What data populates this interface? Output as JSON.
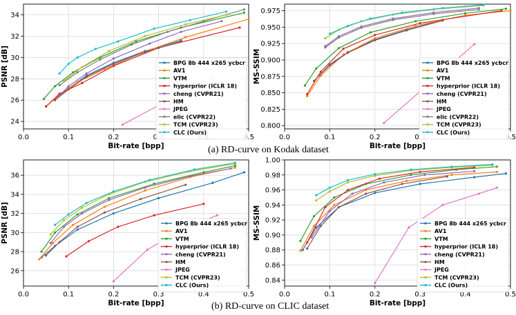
{
  "captions": {
    "a": "(a) RD-curve on Kodak dataset",
    "b": "(b) RD-curve on CLIC dataset"
  },
  "colors": {
    "BPG 8b 444 x265 ycbcr": "#1f77b4",
    "AV1": "#ff7f0e",
    "VTM": "#2ca02c",
    "hyperprior (ICLR 18)": "#d62728",
    "cheng (CVPR21)": "#9467bd",
    "HM": "#8c564b",
    "JPEG": "#e377c2",
    "elic (CVPR22)": "#7f7f7f",
    "TCM (CVPR23)": "#bcbd22",
    "CLC (Ours)": "#17becf"
  },
  "chart_data": [
    {
      "id": "kodak-psnr",
      "type": "line",
      "title": "",
      "xlabel": "Bit-rate [bpp]",
      "ylabel": "PSNR [dB]",
      "xlim": [
        0.0,
        0.5
      ],
      "ylim": [
        23.3,
        35.0
      ],
      "xticks": [
        "0.0",
        "0.1",
        "0.2",
        "0.3",
        "0.4",
        "0.5"
      ],
      "yticks": [
        "24",
        "26",
        "28",
        "30",
        "32",
        "34"
      ],
      "legend": "bottom-right",
      "series": [
        {
          "name": "BPG 8b 444 x265 ycbcr",
          "x": [
            0.07,
            0.1,
            0.14,
            0.2,
            0.27,
            0.35
          ],
          "y": [
            26.1,
            27.1,
            28.3,
            29.5,
            30.6,
            31.6
          ]
        },
        {
          "name": "AV1",
          "x": [
            0.05,
            0.08,
            0.12,
            0.18,
            0.26,
            0.36,
            0.5
          ],
          "y": [
            25.4,
            26.5,
            27.7,
            28.9,
            30.4,
            31.9,
            33.6
          ]
        },
        {
          "name": "VTM",
          "x": [
            0.045,
            0.07,
            0.11,
            0.17,
            0.25,
            0.35,
            0.49
          ],
          "y": [
            26.1,
            27.3,
            28.6,
            30.0,
            31.5,
            32.8,
            34.2
          ]
        },
        {
          "name": "hyperprior (ICLR 18)",
          "x": [
            0.05,
            0.08,
            0.13,
            0.2,
            0.3,
            0.48
          ],
          "y": [
            25.4,
            26.6,
            27.6,
            29.2,
            30.9,
            32.8
          ]
        },
        {
          "name": "cheng (CVPR21)",
          "x": [
            0.07,
            0.1,
            0.14,
            0.2,
            0.28,
            0.35,
            0.44
          ],
          "y": [
            26.0,
            27.3,
            28.5,
            29.9,
            31.3,
            32.4,
            33.4
          ]
        },
        {
          "name": "HM",
          "x": [
            0.07,
            0.1,
            0.14,
            0.2,
            0.27,
            0.35
          ],
          "y": [
            26.0,
            27.0,
            28.2,
            29.4,
            30.5,
            31.5
          ]
        },
        {
          "name": "JPEG",
          "x": [
            0.22,
            0.42
          ],
          "y": [
            23.7,
            28.2
          ]
        },
        {
          "name": "elic (CVPR22)",
          "x": [
            0.08,
            0.12,
            0.17,
            0.24,
            0.32,
            0.4,
            0.49
          ],
          "y": [
            27.4,
            28.6,
            29.8,
            31.2,
            32.4,
            33.4,
            34.5
          ]
        },
        {
          "name": "TCM (CVPR23)",
          "x": [
            0.09,
            0.13,
            0.19,
            0.27,
            0.36,
            0.45
          ],
          "y": [
            27.8,
            29.1,
            30.6,
            32.0,
            33.1,
            34.0
          ]
        },
        {
          "name": "CLC (Ours)",
          "x": [
            0.08,
            0.1,
            0.12,
            0.16,
            0.21,
            0.29,
            0.37,
            0.45
          ],
          "y": [
            28.5,
            29.4,
            30.0,
            30.8,
            31.5,
            32.7,
            33.5,
            34.3
          ]
        }
      ]
    },
    {
      "id": "kodak-msssim",
      "type": "line",
      "title": "",
      "xlabel": "Bit-rate [bpp]",
      "ylabel": "MS-SSIM",
      "xlim": [
        0.0,
        0.5
      ],
      "ylim": [
        0.795,
        0.985
      ],
      "xticks": [
        "0.0",
        "0.1",
        "0.2",
        "0.3",
        "0.4",
        "0.5"
      ],
      "yticks": [
        "0.800",
        "0.825",
        "0.850",
        "0.875",
        "0.900",
        "0.925",
        "0.950",
        "0.975"
      ],
      "legend": "bottom-right",
      "series": [
        {
          "name": "BPG 8b 444 x265 ycbcr",
          "x": [
            0.065,
            0.1,
            0.14,
            0.2,
            0.27,
            0.35
          ],
          "y": [
            0.868,
            0.893,
            0.912,
            0.931,
            0.946,
            0.961
          ]
        },
        {
          "name": "AV1",
          "x": [
            0.05,
            0.08,
            0.13,
            0.2,
            0.29,
            0.4,
            0.5
          ],
          "y": [
            0.845,
            0.876,
            0.908,
            0.933,
            0.952,
            0.968,
            0.975
          ]
        },
        {
          "name": "VTM",
          "x": [
            0.045,
            0.07,
            0.12,
            0.19,
            0.29,
            0.4,
            0.49
          ],
          "y": [
            0.861,
            0.887,
            0.918,
            0.942,
            0.959,
            0.971,
            0.978
          ]
        },
        {
          "name": "hyperprior (ICLR 18)",
          "x": [
            0.05,
            0.08,
            0.13,
            0.2,
            0.3,
            0.48
          ],
          "y": [
            0.848,
            0.882,
            0.917,
            0.938,
            0.956,
            0.975
          ]
        },
        {
          "name": "cheng (CVPR21)",
          "x": [
            0.09,
            0.12,
            0.17,
            0.24,
            0.33,
            0.43
          ],
          "y": [
            0.921,
            0.936,
            0.951,
            0.963,
            0.972,
            0.979
          ]
        },
        {
          "name": "HM",
          "x": [
            0.065,
            0.1,
            0.14,
            0.2,
            0.27,
            0.35
          ],
          "y": [
            0.868,
            0.892,
            0.911,
            0.93,
            0.945,
            0.96
          ]
        },
        {
          "name": "JPEG",
          "x": [
            0.22,
            0.42
          ],
          "y": [
            0.804,
            0.924
          ]
        },
        {
          "name": "elic (CVPR22)",
          "x": [
            0.09,
            0.12,
            0.17,
            0.24,
            0.33,
            0.43
          ],
          "y": [
            0.919,
            0.934,
            0.949,
            0.961,
            0.97,
            0.977
          ]
        },
        {
          "name": "TCM (CVPR23)",
          "x": [
            0.09,
            0.12,
            0.17,
            0.24,
            0.33,
            0.44
          ],
          "y": [
            0.933,
            0.946,
            0.959,
            0.969,
            0.977,
            0.983
          ]
        },
        {
          "name": "CLC (Ours)",
          "x": [
            0.1,
            0.14,
            0.19,
            0.26,
            0.35,
            0.44
          ],
          "y": [
            0.94,
            0.952,
            0.963,
            0.972,
            0.979,
            0.984
          ]
        }
      ]
    },
    {
      "id": "clic-psnr",
      "type": "line",
      "title": "",
      "xlabel": "Bit-rate [bpp]",
      "ylabel": "PSNR [dB]",
      "xlim": [
        0.0,
        0.5
      ],
      "ylim": [
        24.4,
        37.6
      ],
      "xticks": [
        "0.0",
        "0.1",
        "0.2",
        "0.3",
        "0.4",
        "0.5"
      ],
      "yticks": [
        "26",
        "28",
        "30",
        "32",
        "34",
        "36"
      ],
      "legend": "bottom-right",
      "series": [
        {
          "name": "BPG 8b 444 x265 ycbcr",
          "x": [
            0.04,
            0.07,
            0.12,
            0.2,
            0.3,
            0.42,
            0.49
          ],
          "y": [
            27.4,
            28.6,
            30.3,
            32.0,
            33.6,
            35.2,
            36.3
          ]
        },
        {
          "name": "AV1",
          "x": [
            0.035,
            0.065,
            0.11,
            0.18,
            0.27,
            0.37,
            0.47
          ],
          "y": [
            27.2,
            28.9,
            30.8,
            32.7,
            34.4,
            35.8,
            36.8
          ]
        },
        {
          "name": "VTM",
          "x": [
            0.04,
            0.07,
            0.12,
            0.19,
            0.29,
            0.4,
            0.47
          ],
          "y": [
            28.0,
            30.0,
            31.9,
            33.6,
            35.1,
            36.3,
            37.0
          ]
        },
        {
          "name": "hyperprior (ICLR 18)",
          "x": [
            0.095,
            0.145,
            0.21,
            0.29,
            0.4
          ],
          "y": [
            27.5,
            29.1,
            30.6,
            31.8,
            33.0
          ]
        },
        {
          "name": "cheng (CVPR21)",
          "x": [
            0.06,
            0.09,
            0.13,
            0.19,
            0.27,
            0.37,
            0.46
          ],
          "y": [
            28.9,
            30.6,
            32.0,
            33.4,
            34.7,
            35.9,
            36.7
          ]
        },
        {
          "name": "HM",
          "x": [
            0.05,
            0.08,
            0.12,
            0.18,
            0.26,
            0.36
          ],
          "y": [
            27.6,
            29.0,
            30.6,
            32.1,
            33.5,
            35.0
          ]
        },
        {
          "name": "JPEG",
          "x": [
            0.2,
            0.275,
            0.35,
            0.43
          ],
          "y": [
            24.9,
            28.2,
            30.3,
            31.8
          ]
        },
        {
          "name": "TCM (CVPR23)",
          "x": [
            0.06,
            0.09,
            0.13,
            0.19,
            0.27,
            0.37,
            0.47
          ],
          "y": [
            29.8,
            31.3,
            32.6,
            34.0,
            35.3,
            36.4,
            37.2
          ]
        },
        {
          "name": "CLC (Ours)",
          "x": [
            0.07,
            0.1,
            0.14,
            0.2,
            0.28,
            0.38,
            0.47
          ],
          "y": [
            30.8,
            31.9,
            33.1,
            34.3,
            35.5,
            36.6,
            37.3
          ]
        }
      ]
    },
    {
      "id": "clic-msssim",
      "type": "line",
      "title": "",
      "xlabel": "Bit-rate [bpp]",
      "ylabel": "MS-SSIM",
      "xlim": [
        0.0,
        0.5
      ],
      "ylim": [
        0.832,
        1.0
      ],
      "xticks": [
        "0.0",
        "0.1",
        "0.2",
        "0.3",
        "0.4",
        "0.5"
      ],
      "yticks": [
        "0.84",
        "0.86",
        "0.88",
        "0.90",
        "0.92",
        "0.94",
        "0.96",
        "0.98",
        "1.00"
      ],
      "legend": "bottom-right",
      "series": [
        {
          "name": "BPG 8b 444 x265 ycbcr",
          "x": [
            0.04,
            0.07,
            0.12,
            0.2,
            0.3,
            0.42,
            0.49
          ],
          "y": [
            0.88,
            0.91,
            0.937,
            0.956,
            0.968,
            0.977,
            0.982
          ]
        },
        {
          "name": "AV1",
          "x": [
            0.035,
            0.065,
            0.11,
            0.18,
            0.27,
            0.37,
            0.47
          ],
          "y": [
            0.879,
            0.912,
            0.94,
            0.96,
            0.972,
            0.98,
            0.984
          ]
        },
        {
          "name": "VTM",
          "x": [
            0.035,
            0.065,
            0.11,
            0.18,
            0.28,
            0.38,
            0.47
          ],
          "y": [
            0.892,
            0.925,
            0.95,
            0.968,
            0.98,
            0.987,
            0.991
          ]
        },
        {
          "name": "hyperprior (ICLR 18)",
          "x": [
            0.05,
            0.09,
            0.14,
            0.21,
            0.3,
            0.42
          ],
          "y": [
            0.89,
            0.937,
            0.96,
            0.975,
            0.984,
            0.99
          ]
        },
        {
          "name": "cheng (CVPR21)",
          "x": [
            0.06,
            0.1,
            0.15,
            0.22,
            0.31,
            0.42
          ],
          "y": [
            0.897,
            0.932,
            0.955,
            0.97,
            0.98,
            0.985
          ]
        },
        {
          "name": "HM",
          "x": [
            0.05,
            0.08,
            0.12,
            0.18,
            0.26,
            0.36
          ],
          "y": [
            0.882,
            0.912,
            0.937,
            0.955,
            0.968,
            0.978
          ]
        },
        {
          "name": "JPEG",
          "x": [
            0.2,
            0.275,
            0.35,
            0.43,
            0.47
          ],
          "y": [
            0.836,
            0.91,
            0.94,
            0.955,
            0.963
          ]
        },
        {
          "name": "TCM (CVPR23)",
          "x": [
            0.07,
            0.1,
            0.14,
            0.2,
            0.28,
            0.37,
            0.46
          ],
          "y": [
            0.946,
            0.958,
            0.97,
            0.979,
            0.986,
            0.99,
            0.993
          ]
        },
        {
          "name": "CLC (Ours)",
          "x": [
            0.07,
            0.1,
            0.14,
            0.2,
            0.28,
            0.37,
            0.46
          ],
          "y": [
            0.953,
            0.963,
            0.973,
            0.981,
            0.987,
            0.991,
            0.994
          ]
        }
      ]
    }
  ]
}
